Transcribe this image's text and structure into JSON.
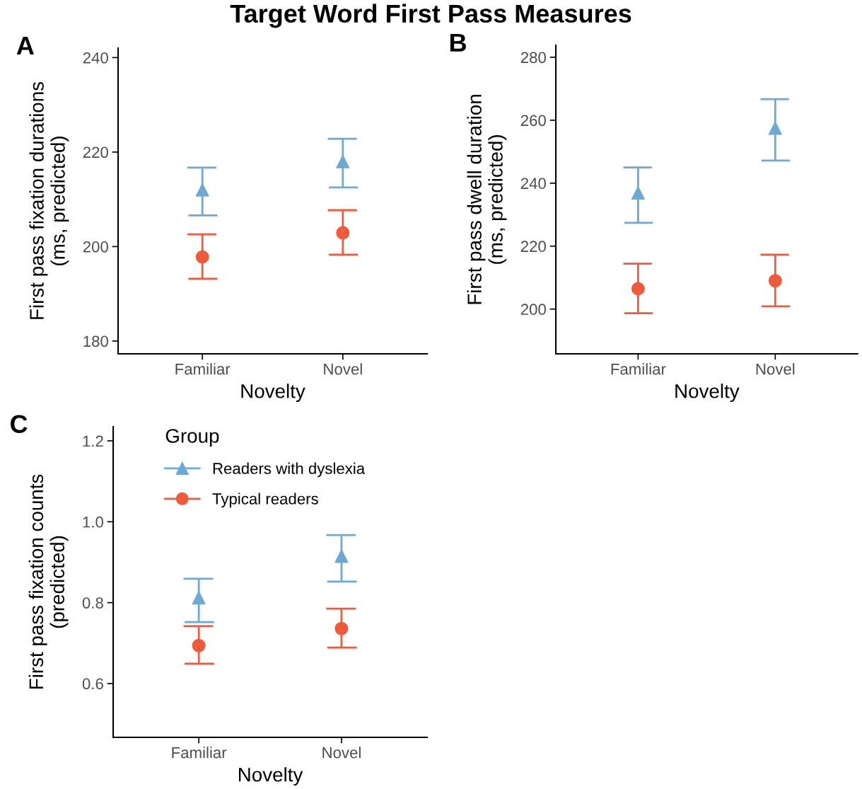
{
  "chart_data": [
    {
      "type": "scatter",
      "title": "Target Word First Pass Measures",
      "annotations": [
        "A"
      ],
      "categories": [
        "Familiar",
        "Novel"
      ],
      "xlabel": "Novelty",
      "ylabel": "First pass fixation durations\n(ms, predicted)",
      "ylim": [
        177.3,
        242
      ],
      "yticks": [
        180,
        200,
        220,
        240
      ],
      "grid": false,
      "series": [
        {
          "color": "#6aaad4",
          "marker": "triangle",
          "values": [
            212.0,
            218.0
          ],
          "errors": [
            [
              206.6,
              216.7
            ],
            [
              212.5,
              222.8
            ]
          ]
        },
        {
          "color": "#f05a3a",
          "marker": "circle",
          "values": [
            197.8,
            202.9
          ],
          "errors": [
            [
              193.2,
              202.6
            ],
            [
              198.3,
              207.7
            ]
          ]
        }
      ]
    },
    {
      "type": "scatter",
      "annotations": [
        "B"
      ],
      "categories": [
        "Familiar",
        "Novel"
      ],
      "xlabel": "Novelty",
      "ylabel": "First pass dwell duration\n(ms, predicted)",
      "ylim": [
        185.8,
        283.8
      ],
      "yticks": [
        200,
        220,
        240,
        260,
        280
      ],
      "grid": false,
      "series": [
        {
          "color": "#6aaad4",
          "marker": "triangle",
          "values": [
            236.9,
            257.5
          ],
          "errors": [
            [
              227.4,
              245.0
            ],
            [
              247.2,
              266.7
            ]
          ]
        },
        {
          "color": "#f05a3a",
          "marker": "circle",
          "values": [
            206.5,
            209.0
          ],
          "errors": [
            [
              198.7,
              214.4
            ],
            [
              200.9,
              217.3
            ]
          ]
        }
      ]
    },
    {
      "type": "scatter",
      "annotations": [
        "C"
      ],
      "categories": [
        "Familiar",
        "Novel"
      ],
      "xlabel": "Novelty",
      "ylabel": "First pass fixation counts\n(predicted)",
      "ylim": [
        0.467,
        1.235
      ],
      "yticks": [
        {
          "value": 0.6,
          "label": "0.6"
        },
        {
          "value": 0.8,
          "label": "0.8"
        },
        {
          "value": 1.0,
          "label": "1.0"
        },
        {
          "value": 1.2,
          "label": "1.2"
        }
      ],
      "grid": false,
      "legend": "top left",
      "legend_title": "Group",
      "series": [
        {
          "name": "Readers with dyslexia",
          "color": "#6aaad4",
          "marker": "triangle",
          "values": [
            0.812,
            0.915
          ],
          "errors": [
            [
              0.752,
              0.859
            ],
            [
              0.852,
              0.967
            ]
          ]
        },
        {
          "name": "Typical readers",
          "color": "#f05a3a",
          "marker": "circle",
          "values": [
            0.694,
            0.736
          ],
          "errors": [
            [
              0.649,
              0.742
            ],
            [
              0.689,
              0.785
            ]
          ]
        }
      ]
    }
  ]
}
